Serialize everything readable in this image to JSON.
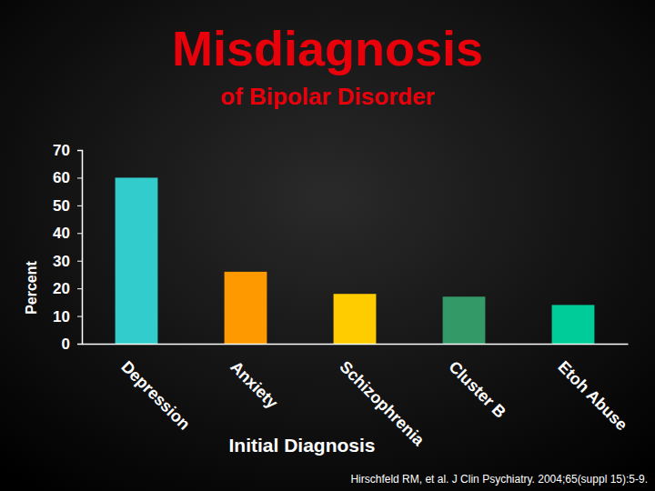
{
  "chart_data": {
    "type": "bar",
    "title": "Misdiagnosis",
    "subtitle": "of Bipolar Disorder",
    "xlabel": "Initial Diagnosis",
    "ylabel": "Percent",
    "categories": [
      "Depression",
      "Anxiety",
      "Schizophrenia",
      "Cluster B",
      "Etoh Abuse"
    ],
    "values": [
      60,
      26,
      18,
      17,
      14
    ],
    "colors": [
      "#33cccc",
      "#ff9900",
      "#ffcc00",
      "#339966",
      "#00cc99"
    ],
    "ylim": [
      0,
      70
    ],
    "yticks": [
      0,
      10,
      20,
      30,
      40,
      50,
      60,
      70
    ],
    "grid": false,
    "source": "Hirschfeld RM, et al. J Clin Psychiatry. 2004;65(suppl 15):5-9."
  }
}
